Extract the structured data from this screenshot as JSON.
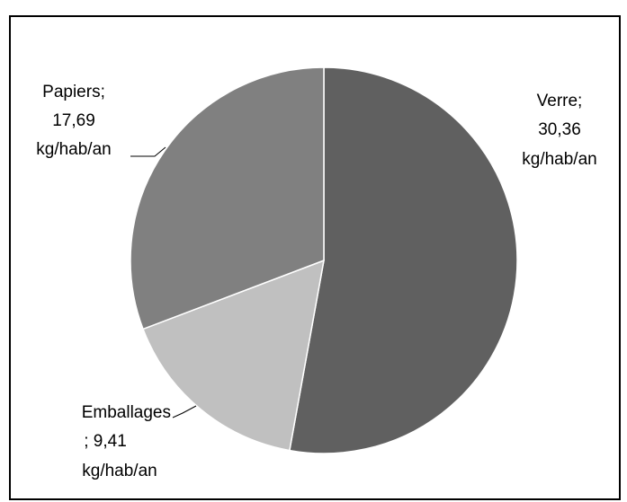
{
  "chart_data": {
    "type": "pie",
    "values": [
      30.36,
      9.41,
      17.69
    ],
    "labels": [
      [
        "Verre;",
        "30,36",
        "kg/hab/an"
      ],
      [
        "Emballages",
        "; 9,41",
        "kg/hab/an"
      ],
      [
        "Papiers;",
        "17,69",
        "kg/hab/an"
      ]
    ],
    "colors": [
      "#606060",
      "#c0c0c0",
      "#808080"
    ]
  }
}
